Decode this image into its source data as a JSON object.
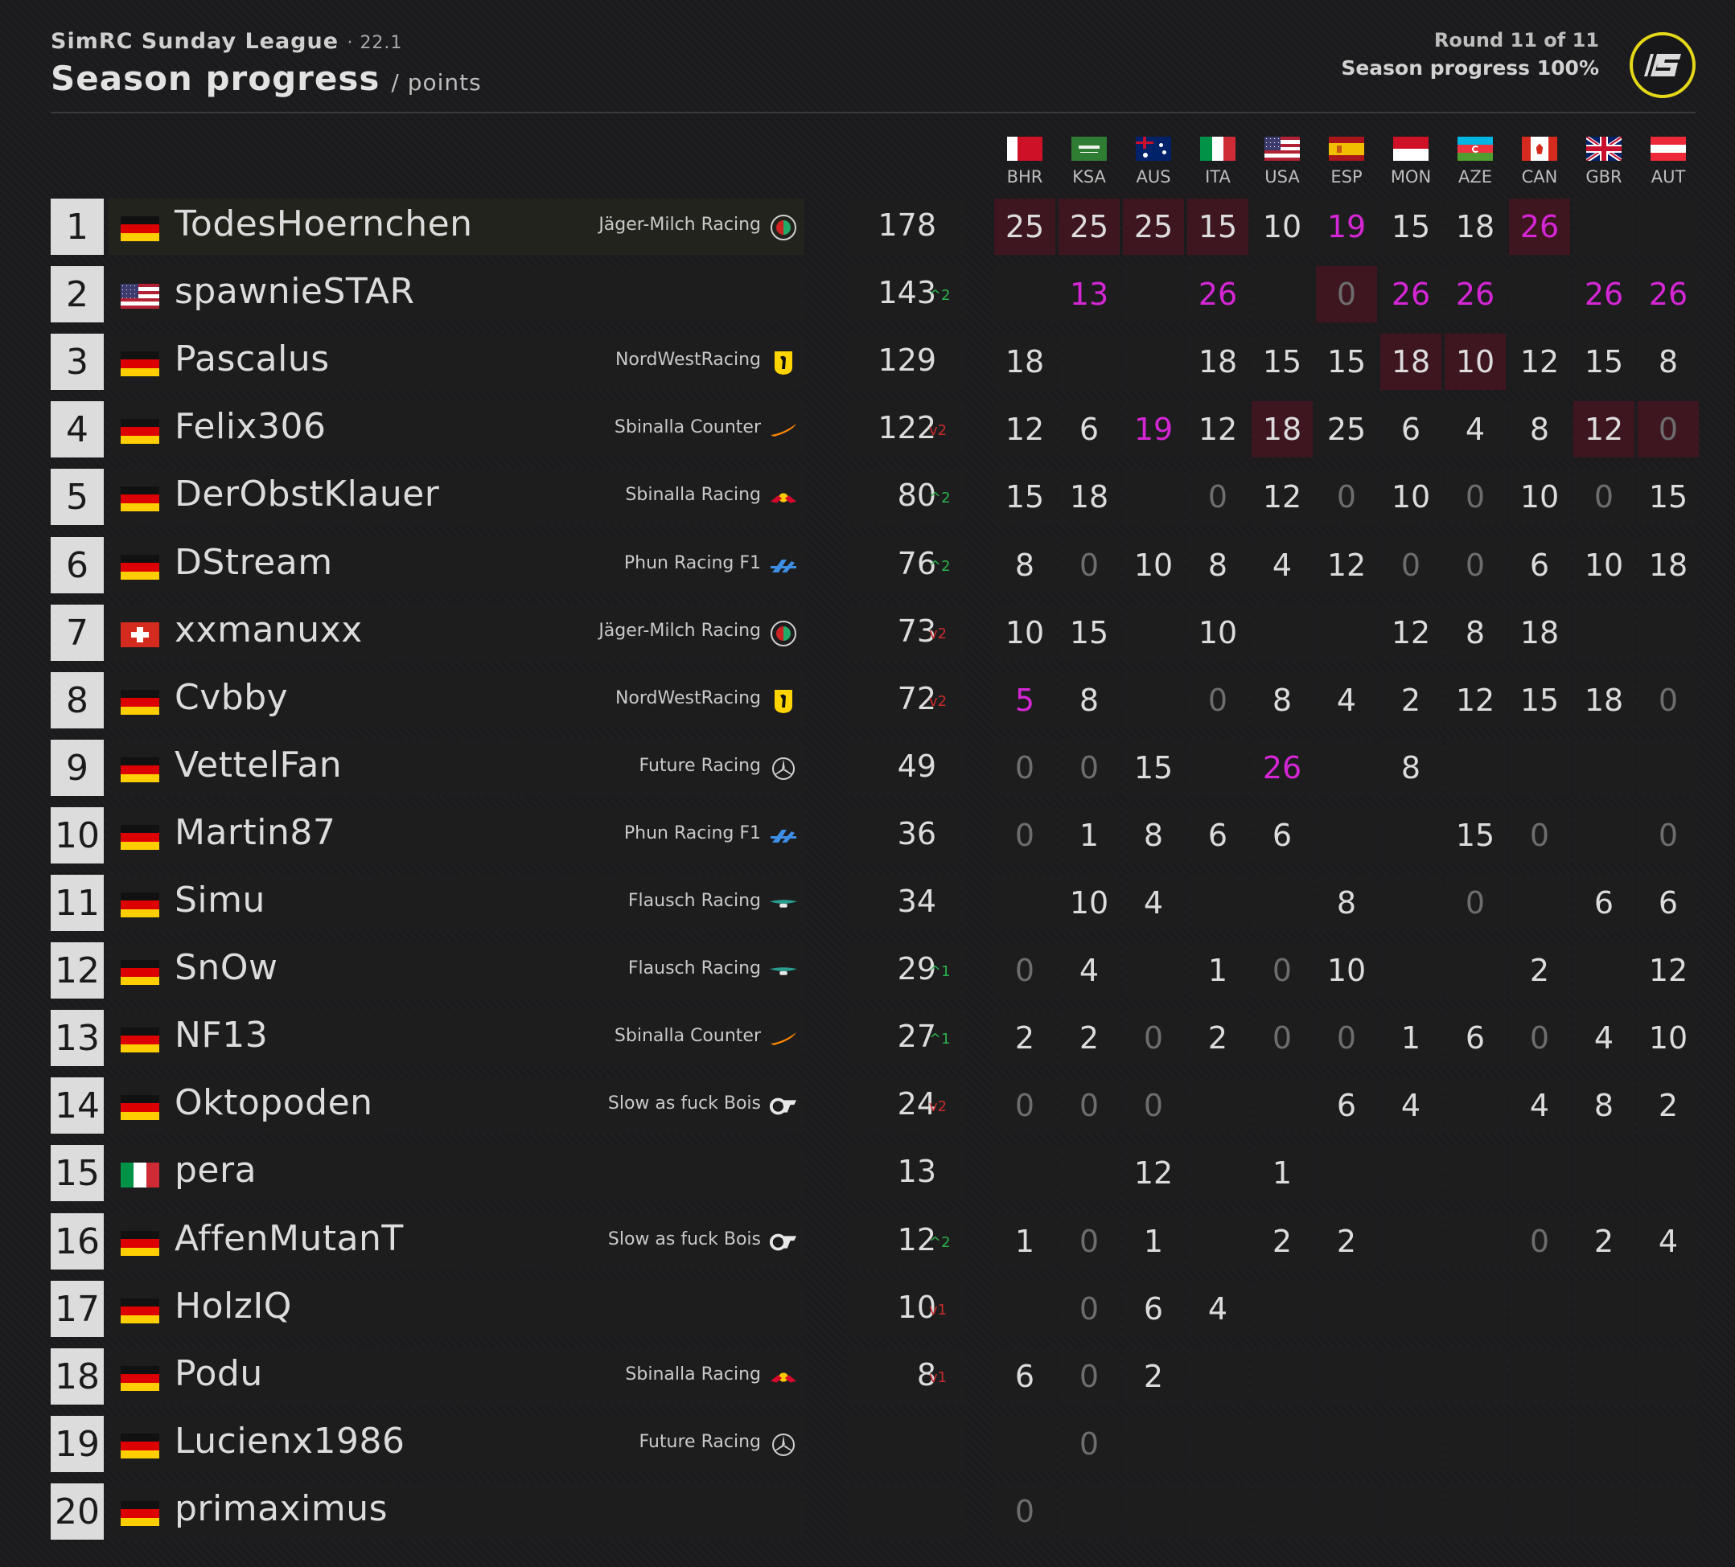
{
  "header": {
    "league": "SimRC Sunday League",
    "version": "· 22.1",
    "title": "Season progress",
    "unit": "/ points",
    "round": "Round 11 of 11",
    "progress": "Season progress 100%"
  },
  "colors": {
    "background": "#1b1b1d",
    "highlight_cell": "#3e1620",
    "fastest_lap_magenta": "#d526d5",
    "zero_grey": "#6d6d6d",
    "position_up": "#2bb34a",
    "position_down": "#c92b2b",
    "logo_ring": "#e4d819"
  },
  "races": [
    "BHR",
    "KSA",
    "AUS",
    "ITA",
    "USA",
    "ESP",
    "MON",
    "AZE",
    "CAN",
    "GBR",
    "AUT"
  ],
  "race_flags": [
    "flag-bahrain",
    "flag-saudi-arabia",
    "flag-australia",
    "flag-italy",
    "flag-usa",
    "flag-spain",
    "flag-monaco",
    "flag-azerbaijan",
    "flag-canada",
    "flag-uk",
    "flag-austria"
  ],
  "standings": [
    {
      "pos": "1",
      "name": "TodesHoernchen",
      "flag": "flag-germany",
      "team": "Jäger-Milch Racing",
      "team_icon": "alfa-romeo-icon",
      "total": "178",
      "change": "",
      "dir": "",
      "results": [
        "25",
        "25",
        "25",
        "15",
        "10",
        "19",
        "15",
        "18",
        "26",
        "",
        ""
      ],
      "styles": [
        "h",
        "h",
        "h",
        "h",
        "",
        "m",
        "",
        "",
        "hm",
        "",
        ""
      ]
    },
    {
      "pos": "2",
      "name": "spawnieSTAR",
      "flag": "flag-usa",
      "team": "",
      "team_icon": "",
      "total": "143",
      "change": "^2",
      "dir": "up",
      "results": [
        "",
        "13",
        "",
        "26",
        "",
        "0",
        "26",
        "26",
        "",
        "26",
        "26"
      ],
      "styles": [
        "",
        "m",
        "",
        "m",
        "",
        "hz",
        "m",
        "m",
        "",
        "m",
        "m"
      ]
    },
    {
      "pos": "3",
      "name": "Pascalus",
      "flag": "flag-germany",
      "team": "NordWestRacing",
      "team_icon": "ferrari-icon",
      "total": "129",
      "change": "",
      "dir": "",
      "results": [
        "18",
        "",
        "",
        "18",
        "15",
        "15",
        "18",
        "10",
        "12",
        "15",
        "8"
      ],
      "styles": [
        "",
        "",
        "",
        "",
        "",
        "",
        "h",
        "h",
        "",
        "",
        ""
      ]
    },
    {
      "pos": "4",
      "name": "Felix306",
      "flag": "flag-germany",
      "team": "Sbinalla Counter",
      "team_icon": "mclaren-icon",
      "total": "122",
      "change": "v2",
      "dir": "down",
      "results": [
        "12",
        "6",
        "19",
        "12",
        "18",
        "25",
        "6",
        "4",
        "8",
        "12",
        "0"
      ],
      "styles": [
        "",
        "",
        "m",
        "",
        "h",
        "",
        "",
        "",
        "",
        "h",
        "hz"
      ]
    },
    {
      "pos": "5",
      "name": "DerObstKlauer",
      "flag": "flag-germany",
      "team": "Sbinalla Racing",
      "team_icon": "red-bull-icon",
      "total": "80",
      "change": "^2",
      "dir": "up",
      "results": [
        "15",
        "18",
        "",
        "0",
        "12",
        "0",
        "10",
        "0",
        "10",
        "0",
        "15"
      ],
      "styles": [
        "",
        "",
        "",
        "z",
        "",
        "z",
        "",
        "z",
        "",
        "z",
        ""
      ]
    },
    {
      "pos": "6",
      "name": "DStream",
      "flag": "flag-germany",
      "team": "Phun Racing F1",
      "team_icon": "alpine-icon",
      "total": "76",
      "change": "^2",
      "dir": "up",
      "results": [
        "8",
        "0",
        "10",
        "8",
        "4",
        "12",
        "0",
        "0",
        "6",
        "10",
        "18"
      ],
      "styles": [
        "",
        "z",
        "",
        "",
        "",
        "",
        "z",
        "z",
        "",
        "",
        ""
      ]
    },
    {
      "pos": "7",
      "name": "xxmanuxx",
      "flag": "flag-switzerland",
      "team": "Jäger-Milch Racing",
      "team_icon": "alfa-romeo-icon",
      "total": "73",
      "change": "v2",
      "dir": "down",
      "results": [
        "10",
        "15",
        "",
        "10",
        "",
        "",
        "12",
        "8",
        "18",
        "",
        ""
      ],
      "styles": [
        "",
        "",
        "",
        "",
        "",
        "",
        "",
        "",
        "",
        "",
        ""
      ]
    },
    {
      "pos": "8",
      "name": "Cvbby",
      "flag": "flag-germany",
      "team": "NordWestRacing",
      "team_icon": "ferrari-icon",
      "total": "72",
      "change": "v2",
      "dir": "down",
      "results": [
        "5",
        "8",
        "",
        "0",
        "8",
        "4",
        "2",
        "12",
        "15",
        "18",
        "0"
      ],
      "styles": [
        "m",
        "",
        "",
        "z",
        "",
        "",
        "",
        "",
        "",
        "",
        "z"
      ]
    },
    {
      "pos": "9",
      "name": "VettelFan",
      "flag": "flag-germany",
      "team": "Future Racing",
      "team_icon": "mercedes-icon",
      "total": "49",
      "change": "",
      "dir": "",
      "results": [
        "0",
        "0",
        "15",
        "",
        "26",
        "",
        "8",
        "",
        "",
        "",
        ""
      ],
      "styles": [
        "z",
        "z",
        "",
        "",
        "m",
        "",
        "",
        "",
        "",
        "",
        ""
      ]
    },
    {
      "pos": "10",
      "name": "Martin87",
      "flag": "flag-germany",
      "team": "Phun Racing F1",
      "team_icon": "alpine-icon",
      "total": "36",
      "change": "",
      "dir": "",
      "results": [
        "0",
        "1",
        "8",
        "6",
        "6",
        "",
        "",
        "15",
        "0",
        "",
        "0"
      ],
      "styles": [
        "z",
        "",
        "",
        "",
        "",
        "",
        "",
        "",
        "z",
        "",
        "z"
      ]
    },
    {
      "pos": "11",
      "name": "Simu",
      "flag": "flag-germany",
      "team": "Flausch Racing",
      "team_icon": "aston-martin-icon",
      "total": "34",
      "change": "",
      "dir": "",
      "results": [
        "",
        "10",
        "4",
        "",
        "",
        "8",
        "",
        "0",
        "",
        "6",
        "6"
      ],
      "styles": [
        "",
        "",
        "",
        "",
        "",
        "",
        "",
        "z",
        "",
        "",
        ""
      ]
    },
    {
      "pos": "12",
      "name": "SnOw",
      "flag": "flag-germany",
      "team": "Flausch Racing",
      "team_icon": "aston-martin-icon",
      "total": "29",
      "change": "^1",
      "dir": "up",
      "results": [
        "0",
        "4",
        "",
        "1",
        "0",
        "10",
        "",
        "",
        "2",
        "",
        "12"
      ],
      "styles": [
        "z",
        "",
        "",
        "",
        "z",
        "",
        "",
        "",
        "",
        "",
        ""
      ]
    },
    {
      "pos": "13",
      "name": "NF13",
      "flag": "flag-germany",
      "team": "Sbinalla Counter",
      "team_icon": "mclaren-icon",
      "total": "27",
      "change": "^1",
      "dir": "up",
      "results": [
        "2",
        "2",
        "0",
        "2",
        "0",
        "0",
        "1",
        "6",
        "0",
        "4",
        "10"
      ],
      "styles": [
        "",
        "",
        "z",
        "",
        "z",
        "z",
        "",
        "",
        "z",
        "",
        ""
      ]
    },
    {
      "pos": "14",
      "name": "Oktopoden",
      "flag": "flag-germany",
      "team": "Slow as fuck Bois",
      "team_icon": "alphatauri-icon",
      "total": "24",
      "change": "v2",
      "dir": "down",
      "results": [
        "0",
        "0",
        "0",
        "",
        "",
        "6",
        "4",
        "",
        "4",
        "8",
        "2"
      ],
      "styles": [
        "z",
        "z",
        "z",
        "",
        "",
        "",
        "",
        "",
        "",
        "",
        ""
      ]
    },
    {
      "pos": "15",
      "name": "pera",
      "flag": "flag-italy",
      "team": "",
      "team_icon": "",
      "total": "13",
      "change": "",
      "dir": "",
      "results": [
        "",
        "",
        "12",
        "",
        "1",
        "",
        "",
        "",
        "",
        "",
        ""
      ],
      "styles": [
        "",
        "",
        "",
        "",
        "",
        "",
        "",
        "",
        "",
        "",
        ""
      ]
    },
    {
      "pos": "16",
      "name": "AffenMutanT",
      "flag": "flag-germany",
      "team": "Slow as fuck Bois",
      "team_icon": "alphatauri-icon",
      "total": "12",
      "change": "^2",
      "dir": "up",
      "results": [
        "1",
        "0",
        "1",
        "",
        "2",
        "2",
        "",
        "",
        "0",
        "2",
        "4"
      ],
      "styles": [
        "",
        "z",
        "",
        "",
        "",
        "",
        "",
        "",
        "z",
        "",
        ""
      ]
    },
    {
      "pos": "17",
      "name": "HolzIQ",
      "flag": "flag-germany",
      "team": "",
      "team_icon": "",
      "total": "10",
      "change": "v1",
      "dir": "down",
      "results": [
        "",
        "0",
        "6",
        "4",
        "",
        "",
        "",
        "",
        "",
        "",
        ""
      ],
      "styles": [
        "",
        "z",
        "",
        "",
        "",
        "",
        "",
        "",
        "",
        "",
        ""
      ]
    },
    {
      "pos": "18",
      "name": "Podu",
      "flag": "flag-germany",
      "team": "Sbinalla Racing",
      "team_icon": "red-bull-icon",
      "total": "8",
      "change": "v1",
      "dir": "down",
      "results": [
        "6",
        "0",
        "2",
        "",
        "",
        "",
        "",
        "",
        "",
        "",
        ""
      ],
      "styles": [
        "",
        "z",
        "",
        "",
        "",
        "",
        "",
        "",
        "",
        "",
        ""
      ]
    },
    {
      "pos": "19",
      "name": "Lucienx1986",
      "flag": "flag-germany",
      "team": "Future Racing",
      "team_icon": "mercedes-icon",
      "total": "",
      "change": "",
      "dir": "",
      "results": [
        "",
        "0",
        "",
        "",
        "",
        "",
        "",
        "",
        "",
        "",
        ""
      ],
      "styles": [
        "",
        "z",
        "",
        "",
        "",
        "",
        "",
        "",
        "",
        "",
        ""
      ]
    },
    {
      "pos": "20",
      "name": "primaximus",
      "flag": "flag-germany",
      "team": "",
      "team_icon": "",
      "total": "",
      "change": "",
      "dir": "",
      "results": [
        "0",
        "",
        "",
        "",
        "",
        "",
        "",
        "",
        "",
        "",
        ""
      ],
      "styles": [
        "z",
        "",
        "",
        "",
        "",
        "",
        "",
        "",
        "",
        "",
        ""
      ]
    }
  ]
}
